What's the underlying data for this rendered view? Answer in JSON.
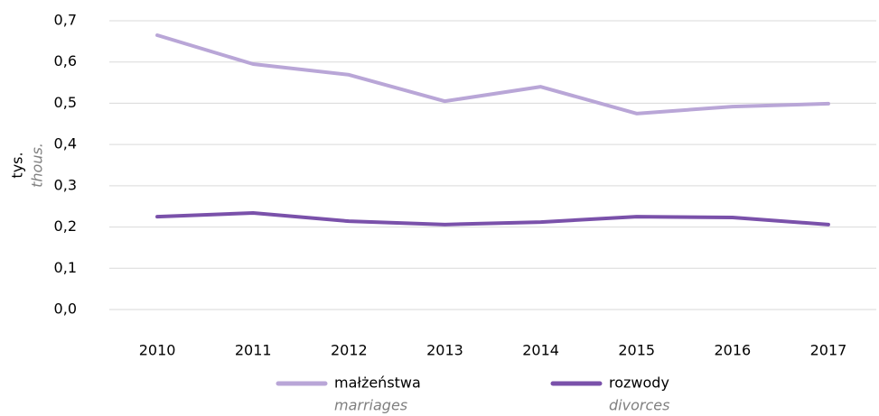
{
  "chart_data": {
    "type": "line",
    "ylabel": "tys.",
    "ylabel_en": "thous.",
    "categories": [
      "2010",
      "2011",
      "2012",
      "2013",
      "2014",
      "2015",
      "2016",
      "2017"
    ],
    "series": [
      {
        "name": "małżeństwa",
        "name_en": "marriages",
        "color": "#b9a6d7",
        "values": [
          0.665,
          0.595,
          0.569,
          0.505,
          0.54,
          0.475,
          0.492,
          0.499
        ]
      },
      {
        "name": "rozwody",
        "name_en": "divorces",
        "color": "#7a51aa",
        "values": [
          0.225,
          0.234,
          0.214,
          0.206,
          0.212,
          0.225,
          0.223,
          0.206
        ]
      }
    ],
    "ylim": [
      0,
      0.7
    ],
    "yticks": [
      {
        "value": 0,
        "label": "0,0"
      },
      {
        "value": 0.1,
        "label": "0,1"
      },
      {
        "value": 0.2,
        "label": "0,2"
      },
      {
        "value": 0.3,
        "label": "0,3"
      },
      {
        "value": 0.4,
        "label": "0,4"
      },
      {
        "value": 0.5,
        "label": "0,5"
      },
      {
        "value": 0.6,
        "label": "0,6"
      },
      {
        "value": 0.7,
        "label": "0,7"
      }
    ],
    "grid": true
  }
}
